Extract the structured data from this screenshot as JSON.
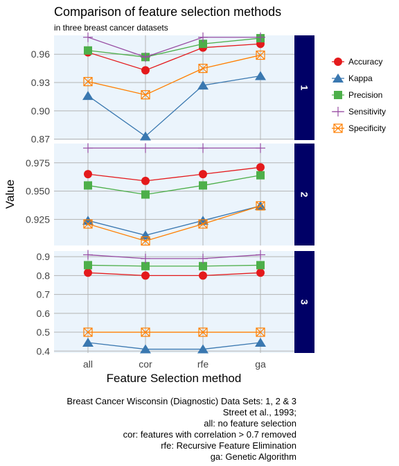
{
  "title": "Comparison of feature selection methods",
  "subtitle": "in three breast cancer datasets",
  "caption": [
    "Breast Cancer Wisconsin (Diagnostic) Data Sets: 1, 2 & 3",
    "Street et al., 1993;",
    "all: no feature selection",
    "cor: features with correlation > 0.7 removed",
    "rfe: Recursive Feature Elimination",
    "ga: Genetic Algorithm"
  ],
  "colors": {
    "panel_bg": "#ebf4fc",
    "grid": "#b3b3b3",
    "strip": "#000066"
  },
  "chart_data": {
    "type": "line",
    "xlabel": "Feature Selection method",
    "ylabel": "Value",
    "categories": [
      "all",
      "cor",
      "rfe",
      "ga"
    ],
    "legend_position": "right",
    "series_styles": [
      {
        "name": "Accuracy",
        "color": "#e41a1c",
        "marker": "circle"
      },
      {
        "name": "Kappa",
        "color": "#3a78b0",
        "marker": "triangle"
      },
      {
        "name": "Precision",
        "color": "#4daf4a",
        "marker": "square"
      },
      {
        "name": "Sensitivity",
        "color": "#984ea3",
        "marker": "plus"
      },
      {
        "name": "Specificity",
        "color": "#ff7f00",
        "marker": "boxx"
      }
    ],
    "panels": [
      {
        "label": "1",
        "ylim": [
          0.869,
          0.98
        ],
        "yticks": [
          0.87,
          0.9,
          0.93,
          0.96
        ],
        "ytick_labels": [
          "0.87",
          "0.90",
          "0.93",
          "0.96"
        ],
        "series": [
          {
            "name": "Accuracy",
            "values": [
              0.962,
              0.943,
              0.967,
              0.971
            ]
          },
          {
            "name": "Kappa",
            "values": [
              0.916,
              0.873,
              0.927,
              0.937
            ]
          },
          {
            "name": "Precision",
            "values": [
              0.964,
              0.957,
              0.971,
              0.977
            ]
          },
          {
            "name": "Sensitivity",
            "values": [
              0.978,
              0.957,
              0.978,
              0.978
            ]
          },
          {
            "name": "Specificity",
            "values": [
              0.931,
              0.917,
              0.945,
              0.959
            ]
          }
        ]
      },
      {
        "label": "2",
        "ylim": [
          0.902,
          0.992
        ],
        "yticks": [
          0.925,
          0.95,
          0.975
        ],
        "ytick_labels": [
          "0.925",
          "0.950",
          "0.975"
        ],
        "series": [
          {
            "name": "Accuracy",
            "values": [
              0.965,
              0.959,
              0.965,
              0.971
            ]
          },
          {
            "name": "Kappa",
            "values": [
              0.924,
              0.911,
              0.924,
              0.937
            ]
          },
          {
            "name": "Precision",
            "values": [
              0.955,
              0.947,
              0.955,
              0.964
            ]
          },
          {
            "name": "Sensitivity",
            "values": [
              0.988,
              0.988,
              0.988,
              0.988
            ]
          },
          {
            "name": "Specificity",
            "values": [
              0.921,
              0.906,
              0.921,
              0.937
            ]
          }
        ]
      },
      {
        "label": "3",
        "ylim": [
          0.39,
          0.93
        ],
        "yticks": [
          0.4,
          0.5,
          0.6,
          0.7,
          0.8,
          0.9
        ],
        "ytick_labels": [
          "0.4",
          "0.5",
          "0.6",
          "0.7",
          "0.8",
          "0.9"
        ],
        "series": [
          {
            "name": "Accuracy",
            "values": [
              0.815,
              0.8,
              0.8,
              0.815
            ]
          },
          {
            "name": "Kappa",
            "values": [
              0.445,
              0.41,
              0.41,
              0.445
            ]
          },
          {
            "name": "Precision",
            "values": [
              0.855,
              0.85,
              0.85,
              0.855
            ]
          },
          {
            "name": "Sensitivity",
            "values": [
              0.91,
              0.89,
              0.89,
              0.91
            ]
          },
          {
            "name": "Specificity",
            "values": [
              0.5,
              0.5,
              0.5,
              0.5
            ]
          }
        ]
      }
    ]
  }
}
